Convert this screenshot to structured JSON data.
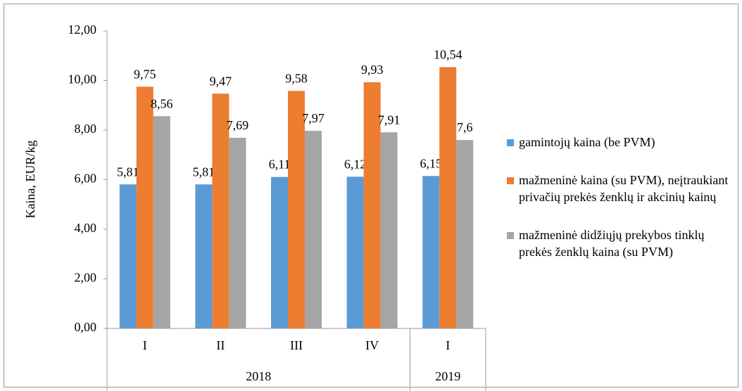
{
  "chart_data": {
    "type": "bar",
    "y_label": "Kaina, EUR/kg",
    "categories": [
      "I",
      "II",
      "III",
      "IV",
      "I"
    ],
    "groups": [
      {
        "label": "2018",
        "span": 4
      },
      {
        "label": "2019",
        "span": 1
      }
    ],
    "series": [
      {
        "name": "gamintojų kaina (be PVM)",
        "color": "#5b9bd5",
        "values": [
          5.81,
          5.81,
          6.11,
          6.12,
          6.15
        ],
        "value_labels": [
          "5,81",
          "5,81",
          "6,11",
          "6,12",
          "6,15"
        ]
      },
      {
        "name": "mažmeninė kaina (su PVM), neįtraukiant privačių prekės ženklų ir akcinių kainų",
        "color": "#ed7d31",
        "values": [
          9.75,
          9.47,
          9.58,
          9.93,
          10.54
        ],
        "value_labels": [
          "9,75",
          "9,47",
          "9,58",
          "9,93",
          "10,54"
        ]
      },
      {
        "name": "mažmeninė didžiųjų prekybos tinklų prekės ženklų kaina (su PVM)",
        "color": "#a5a5a5",
        "values": [
          8.56,
          7.69,
          7.97,
          7.91,
          7.6
        ],
        "value_labels": [
          "8,56",
          "7,69",
          "7,97",
          "7,91",
          "7,6"
        ]
      }
    ],
    "ylim": [
      0,
      12
    ],
    "yticks": [
      {
        "value": 0,
        "label": "0,00"
      },
      {
        "value": 2,
        "label": "2,00"
      },
      {
        "value": 4,
        "label": "4,00"
      },
      {
        "value": 6,
        "label": "6,00"
      },
      {
        "value": 8,
        "label": "8,00"
      },
      {
        "value": 10,
        "label": "10,00"
      },
      {
        "value": 12,
        "label": "12,00"
      }
    ],
    "grid": false,
    "legend": "right"
  }
}
